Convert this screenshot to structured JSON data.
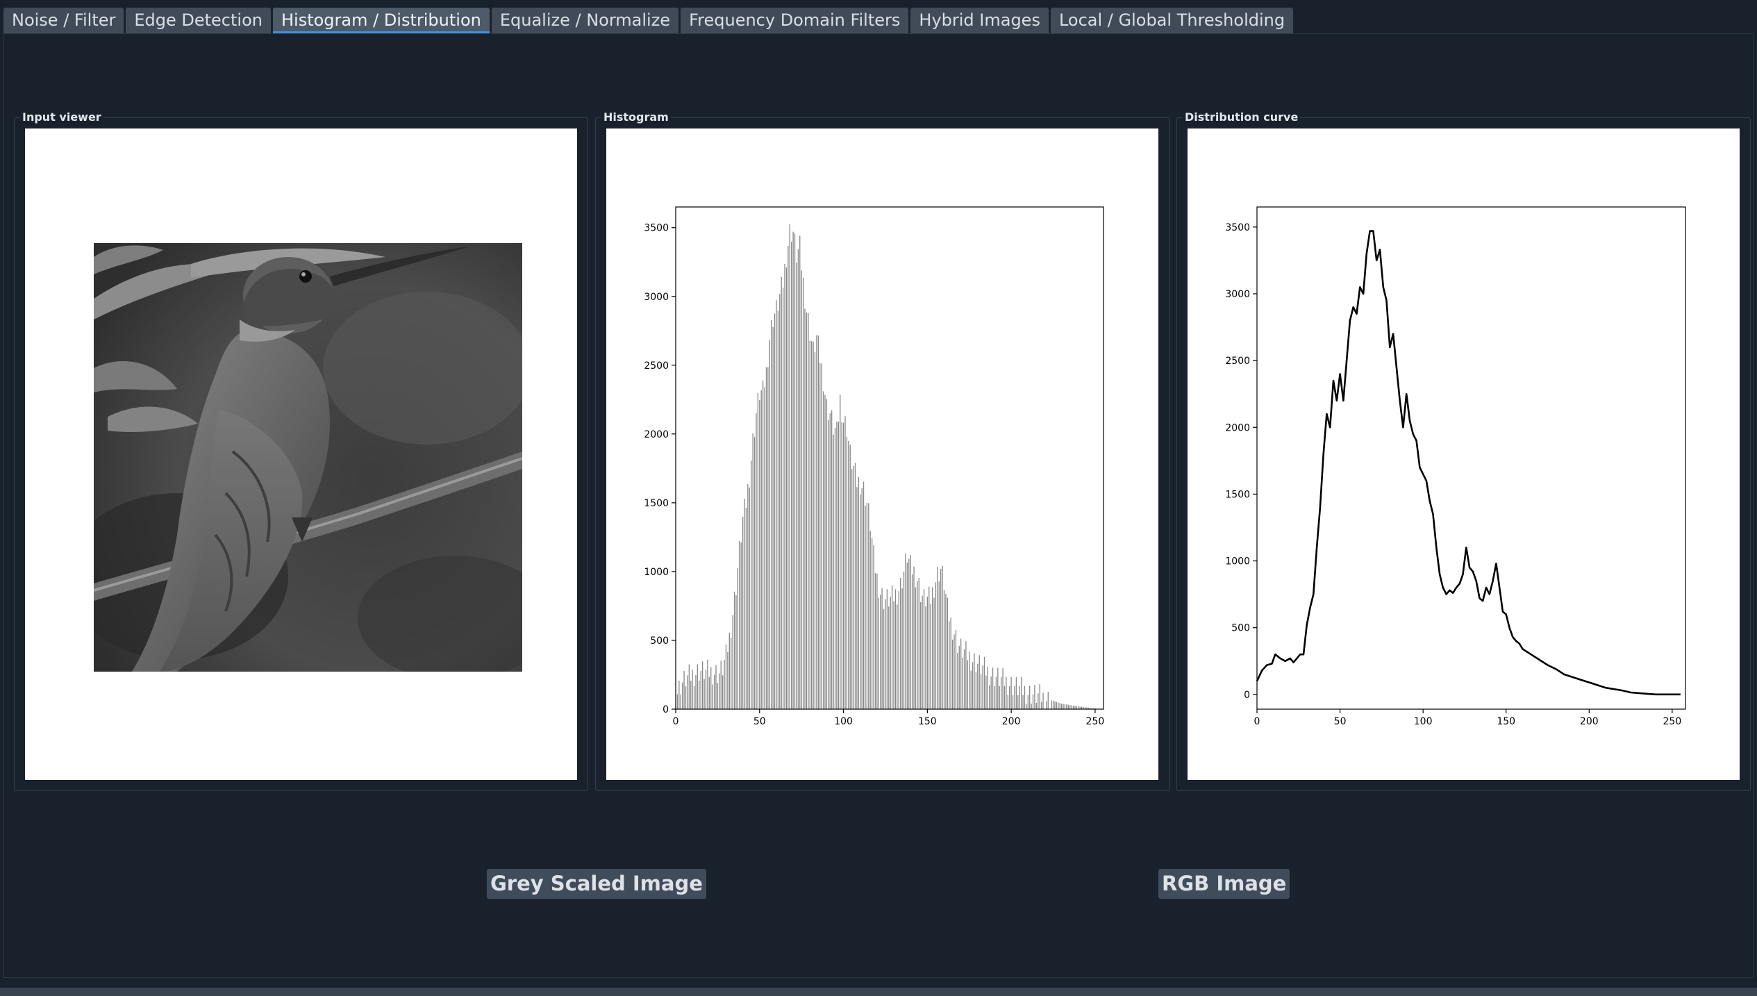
{
  "tabs": [
    {
      "label": "Noise / Filter",
      "active": false
    },
    {
      "label": "Edge Detection",
      "active": false
    },
    {
      "label": "Histogram / Distribution",
      "active": true
    },
    {
      "label": "Equalize / Normalize",
      "active": false
    },
    {
      "label": "Frequency Domain Filters",
      "active": false
    },
    {
      "label": "Hybrid Images",
      "active": false
    },
    {
      "label": "Local / Global Thresholding",
      "active": false
    }
  ],
  "groups": {
    "input": {
      "title": "Input viewer"
    },
    "histogram": {
      "title": "Histogram"
    },
    "distribution": {
      "title": "Distribution curve"
    }
  },
  "buttons": {
    "grey": "Grey Scaled Image",
    "rgb": "RGB Image"
  },
  "colors": {
    "background": "#19222c",
    "tab": "#414b57",
    "tab_active_underline": "#3d8ee0",
    "button": "#414c5a"
  },
  "chart_data": [
    {
      "type": "bar",
      "title": "",
      "xlabel": "",
      "ylabel": "",
      "xlim": [
        0,
        255
      ],
      "ylim": [
        0,
        3650
      ],
      "xticks": [
        0,
        50,
        100,
        150,
        200,
        250
      ],
      "yticks": [
        0,
        500,
        1000,
        1500,
        2000,
        2500,
        3000,
        3500
      ],
      "bar_color": "#888888",
      "anchors": [
        [
          0,
          100
        ],
        [
          3,
          180
        ],
        [
          6,
          220
        ],
        [
          10,
          250
        ],
        [
          14,
          280
        ],
        [
          18,
          270
        ],
        [
          22,
          270
        ],
        [
          26,
          260
        ],
        [
          28,
          300
        ],
        [
          30,
          380
        ],
        [
          32,
          520
        ],
        [
          34,
          700
        ],
        [
          36,
          900
        ],
        [
          38,
          1150
        ],
        [
          40,
          1380
        ],
        [
          42,
          1500
        ],
        [
          44,
          1700
        ],
        [
          46,
          1950
        ],
        [
          48,
          2150
        ],
        [
          50,
          2300
        ],
        [
          52,
          2300
        ],
        [
          54,
          2450
        ],
        [
          56,
          2700
        ],
        [
          58,
          2850
        ],
        [
          60,
          2900
        ],
        [
          62,
          3000
        ],
        [
          64,
          3100
        ],
        [
          66,
          3300
        ],
        [
          68,
          3470
        ],
        [
          70,
          3470
        ],
        [
          72,
          3300
        ],
        [
          74,
          3350
        ],
        [
          76,
          3100
        ],
        [
          78,
          2900
        ],
        [
          80,
          2750
        ],
        [
          82,
          2600
        ],
        [
          84,
          2700
        ],
        [
          86,
          2550
        ],
        [
          88,
          2400
        ],
        [
          90,
          2200
        ],
        [
          92,
          2150
        ],
        [
          94,
          2050
        ],
        [
          96,
          2000
        ],
        [
          98,
          2250
        ],
        [
          100,
          2100
        ],
        [
          102,
          2050
        ],
        [
          104,
          1850
        ],
        [
          106,
          1750
        ],
        [
          108,
          1650
        ],
        [
          110,
          1650
        ],
        [
          112,
          1600
        ],
        [
          114,
          1500
        ],
        [
          116,
          1350
        ],
        [
          118,
          1100
        ],
        [
          120,
          950
        ],
        [
          122,
          850
        ],
        [
          124,
          800
        ],
        [
          126,
          800
        ],
        [
          128,
          800
        ],
        [
          130,
          820
        ],
        [
          132,
          850
        ],
        [
          134,
          900
        ],
        [
          136,
          1000
        ],
        [
          138,
          1120
        ],
        [
          140,
          1030
        ],
        [
          142,
          1000
        ],
        [
          144,
          950
        ],
        [
          146,
          850
        ],
        [
          148,
          800
        ],
        [
          150,
          800
        ],
        [
          152,
          800
        ],
        [
          154,
          900
        ],
        [
          156,
          980
        ],
        [
          158,
          1020
        ],
        [
          160,
          920
        ],
        [
          162,
          720
        ],
        [
          164,
          630
        ],
        [
          166,
          560
        ],
        [
          168,
          480
        ],
        [
          170,
          440
        ],
        [
          175,
          380
        ],
        [
          180,
          330
        ],
        [
          185,
          280
        ],
        [
          190,
          240
        ],
        [
          195,
          210
        ],
        [
          200,
          180
        ],
        [
          205,
          150
        ],
        [
          210,
          120
        ],
        [
          215,
          100
        ],
        [
          220,
          80
        ],
        [
          225,
          60
        ],
        [
          230,
          40
        ],
        [
          235,
          30
        ],
        [
          240,
          20
        ],
        [
          245,
          12
        ],
        [
          250,
          5
        ],
        [
          255,
          0
        ]
      ]
    },
    {
      "type": "line",
      "title": "",
      "xlabel": "",
      "ylabel": "",
      "xlim": [
        0,
        258
      ],
      "ylim": [
        -110,
        3650
      ],
      "xticks": [
        0,
        50,
        100,
        150,
        200,
        250
      ],
      "yticks": [
        0,
        500,
        1000,
        1500,
        2000,
        2500,
        3000,
        3500
      ],
      "line_color": "#000000",
      "anchors": [
        [
          0,
          100
        ],
        [
          3,
          180
        ],
        [
          6,
          220
        ],
        [
          9,
          230
        ],
        [
          11,
          300
        ],
        [
          14,
          270
        ],
        [
          17,
          250
        ],
        [
          20,
          270
        ],
        [
          22,
          240
        ],
        [
          26,
          300
        ],
        [
          28,
          300
        ],
        [
          30,
          520
        ],
        [
          32,
          650
        ],
        [
          34,
          750
        ],
        [
          36,
          1100
        ],
        [
          38,
          1400
        ],
        [
          40,
          1800
        ],
        [
          42,
          2100
        ],
        [
          44,
          2000
        ],
        [
          46,
          2350
        ],
        [
          48,
          2200
        ],
        [
          50,
          2400
        ],
        [
          52,
          2200
        ],
        [
          54,
          2500
        ],
        [
          56,
          2800
        ],
        [
          58,
          2900
        ],
        [
          60,
          2850
        ],
        [
          62,
          3050
        ],
        [
          64,
          3000
        ],
        [
          66,
          3300
        ],
        [
          68,
          3470
        ],
        [
          70,
          3470
        ],
        [
          72,
          3250
        ],
        [
          74,
          3330
        ],
        [
          76,
          3050
        ],
        [
          78,
          2950
        ],
        [
          80,
          2600
        ],
        [
          82,
          2700
        ],
        [
          84,
          2450
        ],
        [
          86,
          2200
        ],
        [
          88,
          2000
        ],
        [
          90,
          2250
        ],
        [
          92,
          2050
        ],
        [
          94,
          1950
        ],
        [
          96,
          1900
        ],
        [
          98,
          1700
        ],
        [
          100,
          1650
        ],
        [
          102,
          1600
        ],
        [
          104,
          1450
        ],
        [
          106,
          1350
        ],
        [
          108,
          1100
        ],
        [
          110,
          900
        ],
        [
          112,
          800
        ],
        [
          114,
          750
        ],
        [
          116,
          780
        ],
        [
          118,
          760
        ],
        [
          120,
          800
        ],
        [
          122,
          830
        ],
        [
          124,
          900
        ],
        [
          126,
          1100
        ],
        [
          128,
          950
        ],
        [
          130,
          920
        ],
        [
          132,
          850
        ],
        [
          134,
          720
        ],
        [
          136,
          700
        ],
        [
          138,
          800
        ],
        [
          140,
          750
        ],
        [
          142,
          850
        ],
        [
          144,
          980
        ],
        [
          146,
          800
        ],
        [
          148,
          620
        ],
        [
          150,
          600
        ],
        [
          152,
          500
        ],
        [
          154,
          430
        ],
        [
          156,
          400
        ],
        [
          158,
          380
        ],
        [
          160,
          340
        ],
        [
          165,
          300
        ],
        [
          170,
          260
        ],
        [
          175,
          220
        ],
        [
          180,
          190
        ],
        [
          185,
          150
        ],
        [
          190,
          130
        ],
        [
          195,
          110
        ],
        [
          200,
          90
        ],
        [
          205,
          70
        ],
        [
          210,
          50
        ],
        [
          215,
          40
        ],
        [
          220,
          30
        ],
        [
          225,
          15
        ],
        [
          230,
          10
        ],
        [
          235,
          5
        ],
        [
          240,
          0
        ],
        [
          250,
          0
        ],
        [
          255,
          0
        ]
      ]
    }
  ]
}
